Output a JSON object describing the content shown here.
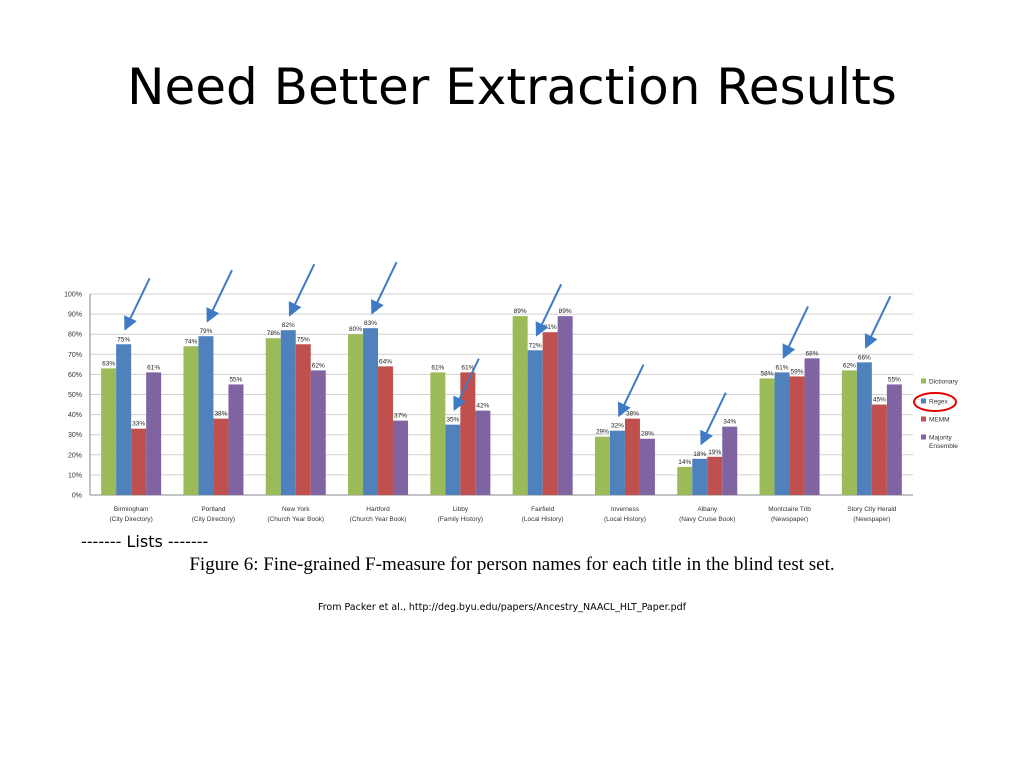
{
  "slide": {
    "title": "Need Better Extraction Results",
    "lists_label": "------- Lists -------",
    "figure_caption": "Figure 6: Fine-grained F-measure for person names for each title in the blind test set.",
    "source_note": "From Packer et al., http://deg.byu.edu/papers/Ancestry_NAACL_HLT_Paper.pdf"
  },
  "colors": {
    "Dictionary": "#9bbb59",
    "Regex": "#4f81bd",
    "MEMM": "#c0504d",
    "Majority Ensemble": "#8064a2",
    "arrow": "#3d7bc4",
    "highlight_circle": "#e00000",
    "gridline": "#d0d0d0"
  },
  "chart_data": {
    "type": "bar",
    "title": "",
    "xlabel": "",
    "ylabel": "",
    "ylim": [
      0,
      100
    ],
    "yticks": [
      "0%",
      "10%",
      "20%",
      "30%",
      "40%",
      "50%",
      "60%",
      "70%",
      "80%",
      "90%",
      "100%"
    ],
    "grid": true,
    "legend_position": "right",
    "highlighted_series": "Regex",
    "categories": [
      [
        "Birmingham",
        "(City Directory)"
      ],
      [
        "Portland",
        "(City Directory)"
      ],
      [
        "New York",
        "(Church Year Book)"
      ],
      [
        "Hartford",
        "(Church Year Book)"
      ],
      [
        "Libby",
        "(Family History)"
      ],
      [
        "Fairfield",
        "(Local History)"
      ],
      [
        "Inverness",
        "(Local History)"
      ],
      [
        "Albany",
        "(Navy Cruise Book)"
      ],
      [
        "Montclaire Trib",
        "(Newspaper)"
      ],
      [
        "Story City Herald",
        "(Newspaper)"
      ]
    ],
    "series": [
      {
        "name": "Dictionary",
        "values": [
          63,
          74,
          78,
          80,
          61,
          89,
          29,
          14,
          58,
          62
        ]
      },
      {
        "name": "Regex",
        "values": [
          75,
          79,
          82,
          83,
          35,
          72,
          32,
          18,
          61,
          66
        ]
      },
      {
        "name": "MEMM",
        "values": [
          33,
          38,
          75,
          64,
          61,
          81,
          38,
          19,
          59,
          45
        ]
      },
      {
        "name": "Majority Ensemble",
        "values": [
          61,
          55,
          62,
          37,
          42,
          89,
          28,
          34,
          68,
          55
        ]
      }
    ],
    "data_labels": [
      [
        "63%",
        "74%",
        "78%",
        "80%",
        "61%",
        "89%",
        "29%",
        "14%",
        "58%",
        "62%"
      ],
      [
        "75%",
        "79%",
        "82%",
        "83%",
        "35%",
        "72%",
        "32%",
        "18%",
        "61%",
        "66%"
      ],
      [
        "33%",
        "38%",
        "75%",
        "64%",
        "61%",
        "81%",
        "38%",
        "19%",
        "59%",
        "45%"
      ],
      [
        "61%",
        "55%",
        "62%",
        "37%",
        "42%",
        "89%",
        "28%",
        "34%",
        "68%",
        "55%"
      ]
    ],
    "annotations": {
      "arrows_point_to": "Regex bar in each category"
    }
  }
}
